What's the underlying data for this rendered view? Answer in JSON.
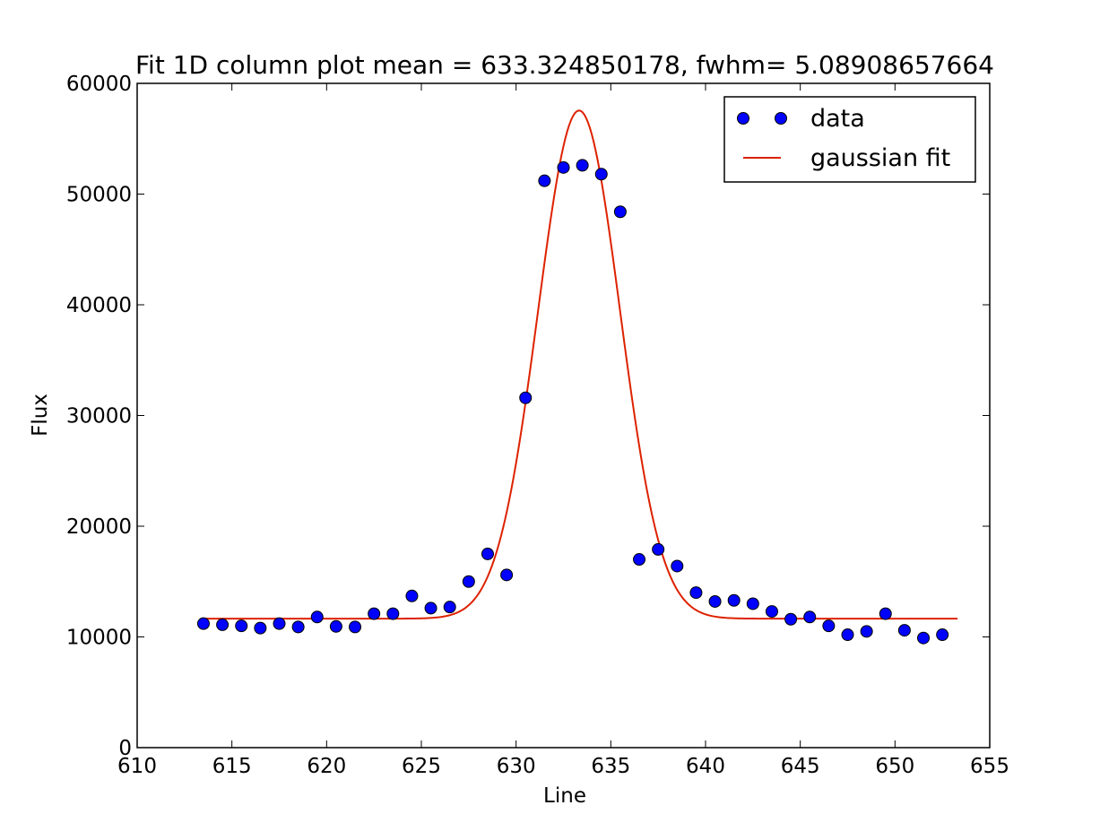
{
  "chart_data": {
    "type": "scatter",
    "title": "Fit 1D column plot  mean = 633.324850178, fwhm= 5.08908657664",
    "xlabel": "Line",
    "ylabel": "Flux",
    "xlim": [
      610,
      655
    ],
    "ylim": [
      0,
      60000
    ],
    "xticks": [
      610,
      615,
      620,
      625,
      630,
      635,
      640,
      645,
      650,
      655
    ],
    "yticks": [
      0,
      10000,
      20000,
      30000,
      40000,
      50000,
      60000
    ],
    "grid": false,
    "legend_position": "top-right",
    "colors": {
      "data": "#0000ff",
      "fit": "#dd2200"
    },
    "series": [
      {
        "name": "data",
        "kind": "points",
        "x": [
          613.5,
          614.5,
          615.5,
          616.5,
          617.5,
          618.5,
          619.5,
          620.5,
          621.5,
          622.5,
          623.5,
          624.5,
          625.5,
          626.5,
          627.5,
          628.5,
          629.5,
          630.5,
          631.5,
          632.5,
          633.5,
          634.5,
          635.5,
          636.5,
          637.5,
          638.5,
          639.5,
          640.5,
          641.5,
          642.5,
          643.5,
          644.5,
          645.5,
          646.5,
          647.5,
          648.5,
          649.5,
          650.5,
          651.5,
          652.5
        ],
        "y": [
          11200,
          11100,
          11000,
          10800,
          11200,
          10900,
          11800,
          10950,
          10900,
          12100,
          12100,
          13700,
          12600,
          12700,
          15000,
          17500,
          15600,
          31600,
          51200,
          52400,
          52600,
          51800,
          48400,
          17000,
          17900,
          16400,
          14000,
          13200,
          13300,
          13000,
          12300,
          11600,
          11800,
          11000,
          10200,
          10500,
          12100,
          10600,
          9900,
          10200
        ]
      },
      {
        "name": "gaussian fit",
        "kind": "line",
        "model": "gaussian",
        "x_range": [
          613.5,
          653.3
        ],
        "mean": 633.324850178,
        "fwhm": 5.08908657664,
        "amplitude": 45900,
        "baseline": 11650
      }
    ]
  }
}
